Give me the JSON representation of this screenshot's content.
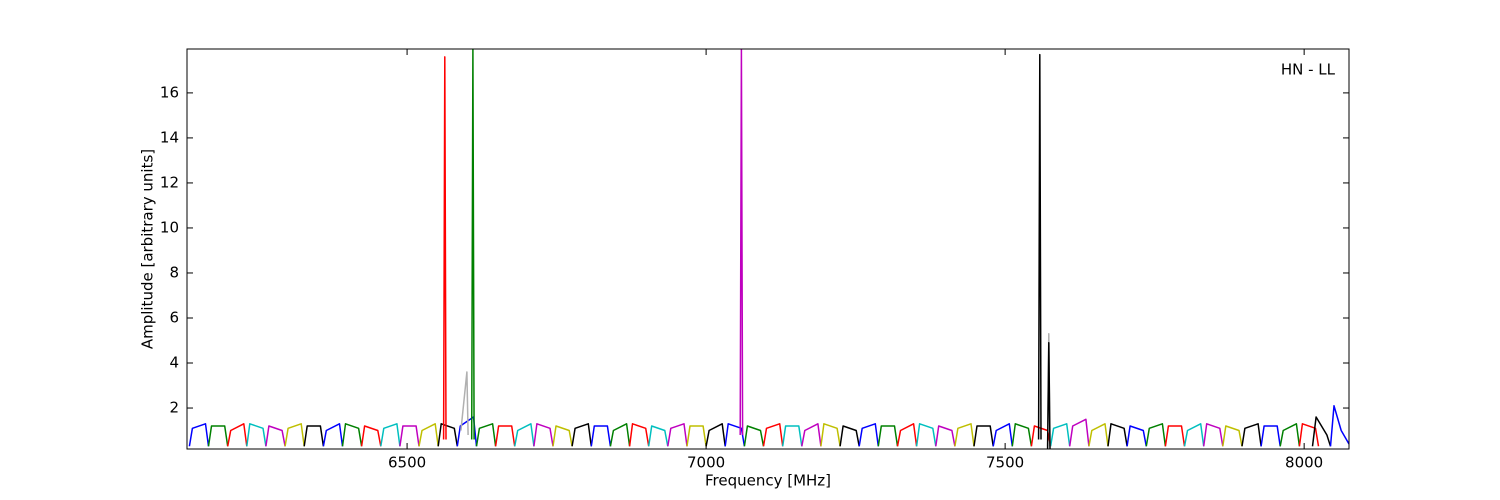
{
  "chart_data": {
    "type": "line",
    "annotation": "HN - LL",
    "xlabel": "Frequency [MHz]",
    "ylabel": "Amplitude [arbitrary units]",
    "xlim": [
      6132,
      8075
    ],
    "ylim": [
      0.18,
      17.95
    ],
    "xticks": [
      6500,
      7000,
      7500,
      8000
    ],
    "yticks": [
      2,
      4,
      6,
      8,
      10,
      12,
      14,
      16
    ],
    "series": [
      {
        "color": "#0000ff",
        "x": [
          6136,
          6141,
          6163,
          6168
        ],
        "values": [
          0.3,
          1.1,
          1.3,
          0.3
        ]
      },
      {
        "color": "#008000",
        "x": [
          6168,
          6173,
          6195,
          6200
        ],
        "values": [
          0.3,
          1.2,
          1.2,
          0.3
        ]
      },
      {
        "color": "#ff0000",
        "x": [
          6200,
          6205,
          6227,
          6232
        ],
        "values": [
          0.3,
          1.0,
          1.3,
          0.3
        ]
      },
      {
        "color": "#00bfbf",
        "x": [
          6232,
          6237,
          6259,
          6264
        ],
        "values": [
          0.3,
          1.3,
          1.1,
          0.3
        ]
      },
      {
        "color": "#bf00bf",
        "x": [
          6264,
          6269,
          6291,
          6296
        ],
        "values": [
          0.3,
          1.2,
          1.0,
          0.3
        ]
      },
      {
        "color": "#bfbf00",
        "x": [
          6296,
          6301,
          6323,
          6328
        ],
        "values": [
          0.3,
          1.1,
          1.3,
          0.3
        ]
      },
      {
        "color": "#000000",
        "x": [
          6328,
          6333,
          6355,
          6360
        ],
        "values": [
          0.3,
          1.2,
          1.2,
          0.3
        ]
      },
      {
        "color": "#0000ff",
        "x": [
          6360,
          6365,
          6387,
          6392
        ],
        "values": [
          0.3,
          1.0,
          1.3,
          0.3
        ]
      },
      {
        "color": "#008000",
        "x": [
          6392,
          6397,
          6419,
          6424
        ],
        "values": [
          0.3,
          1.3,
          1.1,
          0.3
        ]
      },
      {
        "color": "#ff0000",
        "x": [
          6424,
          6429,
          6451,
          6456
        ],
        "values": [
          0.3,
          1.2,
          1.0,
          0.3
        ]
      },
      {
        "color": "#00bfbf",
        "x": [
          6456,
          6461,
          6483,
          6488
        ],
        "values": [
          0.3,
          1.1,
          1.3,
          0.3
        ]
      },
      {
        "color": "#bf00bf",
        "x": [
          6488,
          6493,
          6515,
          6520
        ],
        "values": [
          0.3,
          1.2,
          1.2,
          0.3
        ]
      },
      {
        "color": "#bfbf00",
        "x": [
          6520,
          6525,
          6547,
          6552
        ],
        "values": [
          0.3,
          1.0,
          1.3,
          0.3
        ]
      },
      {
        "color": "#000000",
        "x": [
          6552,
          6557,
          6579,
          6584
        ],
        "values": [
          0.3,
          1.3,
          1.1,
          0.3
        ]
      },
      {
        "color": "#0000ff",
        "x": [
          6584,
          6589,
          6611,
          6616
        ],
        "values": [
          0.3,
          1.2,
          1.6,
          0.3
        ]
      },
      {
        "color": "#008000",
        "x": [
          6616,
          6621,
          6643,
          6648
        ],
        "values": [
          0.3,
          1.1,
          1.3,
          0.3
        ]
      },
      {
        "color": "#ff0000",
        "x": [
          6648,
          6653,
          6675,
          6680
        ],
        "values": [
          0.3,
          1.2,
          1.2,
          0.3
        ]
      },
      {
        "color": "#00bfbf",
        "x": [
          6680,
          6685,
          6707,
          6712
        ],
        "values": [
          0.3,
          1.0,
          1.3,
          0.3
        ]
      },
      {
        "color": "#bf00bf",
        "x": [
          6712,
          6717,
          6739,
          6744
        ],
        "values": [
          0.3,
          1.3,
          1.1,
          0.3
        ]
      },
      {
        "color": "#bfbf00",
        "x": [
          6744,
          6749,
          6771,
          6776
        ],
        "values": [
          0.3,
          1.2,
          1.0,
          0.3
        ]
      },
      {
        "color": "#000000",
        "x": [
          6776,
          6781,
          6803,
          6808
        ],
        "values": [
          0.3,
          1.1,
          1.3,
          0.3
        ]
      },
      {
        "color": "#0000ff",
        "x": [
          6808,
          6813,
          6835,
          6840
        ],
        "values": [
          0.3,
          1.2,
          1.2,
          0.3
        ]
      },
      {
        "color": "#008000",
        "x": [
          6840,
          6845,
          6867,
          6872
        ],
        "values": [
          0.3,
          1.0,
          1.3,
          0.3
        ]
      },
      {
        "color": "#ff0000",
        "x": [
          6872,
          6877,
          6899,
          6904
        ],
        "values": [
          0.3,
          1.3,
          1.1,
          0.3
        ]
      },
      {
        "color": "#00bfbf",
        "x": [
          6904,
          6909,
          6931,
          6936
        ],
        "values": [
          0.3,
          1.2,
          1.0,
          0.3
        ]
      },
      {
        "color": "#bf00bf",
        "x": [
          6936,
          6941,
          6963,
          6968
        ],
        "values": [
          0.3,
          1.1,
          1.3,
          0.3
        ]
      },
      {
        "color": "#bfbf00",
        "x": [
          6968,
          6973,
          6995,
          7000
        ],
        "values": [
          0.3,
          1.2,
          1.2,
          0.3
        ]
      },
      {
        "color": "#000000",
        "x": [
          7000,
          7005,
          7027,
          7032
        ],
        "values": [
          0.3,
          1.0,
          1.3,
          0.3
        ]
      },
      {
        "color": "#0000ff",
        "x": [
          7032,
          7037,
          7059,
          7064
        ],
        "values": [
          0.3,
          1.3,
          1.1,
          0.3
        ]
      },
      {
        "color": "#008000",
        "x": [
          7064,
          7069,
          7091,
          7096
        ],
        "values": [
          0.3,
          1.2,
          1.0,
          0.3
        ]
      },
      {
        "color": "#ff0000",
        "x": [
          7096,
          7101,
          7123,
          7128
        ],
        "values": [
          0.3,
          1.1,
          1.3,
          0.3
        ]
      },
      {
        "color": "#00bfbf",
        "x": [
          7128,
          7133,
          7155,
          7160
        ],
        "values": [
          0.3,
          1.2,
          1.2,
          0.3
        ]
      },
      {
        "color": "#bf00bf",
        "x": [
          7160,
          7165,
          7187,
          7192
        ],
        "values": [
          0.3,
          1.0,
          1.3,
          0.3
        ]
      },
      {
        "color": "#bfbf00",
        "x": [
          7192,
          7197,
          7219,
          7224
        ],
        "values": [
          0.3,
          1.3,
          1.1,
          0.3
        ]
      },
      {
        "color": "#000000",
        "x": [
          7224,
          7229,
          7251,
          7256
        ],
        "values": [
          0.3,
          1.2,
          1.0,
          0.3
        ]
      },
      {
        "color": "#0000ff",
        "x": [
          7256,
          7261,
          7283,
          7288
        ],
        "values": [
          0.3,
          1.1,
          1.3,
          0.3
        ]
      },
      {
        "color": "#008000",
        "x": [
          7288,
          7293,
          7315,
          7320
        ],
        "values": [
          0.3,
          1.2,
          1.2,
          0.3
        ]
      },
      {
        "color": "#ff0000",
        "x": [
          7320,
          7325,
          7347,
          7352
        ],
        "values": [
          0.3,
          1.0,
          1.3,
          0.3
        ]
      },
      {
        "color": "#00bfbf",
        "x": [
          7352,
          7357,
          7379,
          7384
        ],
        "values": [
          0.3,
          1.3,
          1.1,
          0.3
        ]
      },
      {
        "color": "#bf00bf",
        "x": [
          7384,
          7389,
          7411,
          7416
        ],
        "values": [
          0.3,
          1.2,
          1.0,
          0.3
        ]
      },
      {
        "color": "#bfbf00",
        "x": [
          7416,
          7421,
          7443,
          7448
        ],
        "values": [
          0.3,
          1.1,
          1.3,
          0.3
        ]
      },
      {
        "color": "#000000",
        "x": [
          7448,
          7453,
          7475,
          7480
        ],
        "values": [
          0.3,
          1.2,
          1.2,
          0.3
        ]
      },
      {
        "color": "#0000ff",
        "x": [
          7480,
          7485,
          7507,
          7512
        ],
        "values": [
          0.3,
          1.0,
          1.3,
          0.3
        ]
      },
      {
        "color": "#008000",
        "x": [
          7512,
          7517,
          7539,
          7544
        ],
        "values": [
          0.3,
          1.3,
          1.1,
          0.3
        ]
      },
      {
        "color": "#ff0000",
        "x": [
          7544,
          7549,
          7571,
          7576
        ],
        "values": [
          0.3,
          1.2,
          1.0,
          0.3
        ]
      },
      {
        "color": "#00bfbf",
        "x": [
          7576,
          7581,
          7603,
          7608
        ],
        "values": [
          0.3,
          1.1,
          1.3,
          0.3
        ]
      },
      {
        "color": "#bf00bf",
        "x": [
          7608,
          7613,
          7635,
          7640
        ],
        "values": [
          0.3,
          1.2,
          1.5,
          0.3
        ]
      },
      {
        "color": "#bfbf00",
        "x": [
          7640,
          7645,
          7667,
          7672
        ],
        "values": [
          0.3,
          1.0,
          1.3,
          0.3
        ]
      },
      {
        "color": "#000000",
        "x": [
          7672,
          7677,
          7699,
          7704
        ],
        "values": [
          0.3,
          1.3,
          1.1,
          0.3
        ]
      },
      {
        "color": "#0000ff",
        "x": [
          7704,
          7709,
          7731,
          7736
        ],
        "values": [
          0.3,
          1.2,
          1.0,
          0.3
        ]
      },
      {
        "color": "#008000",
        "x": [
          7736,
          7741,
          7763,
          7768
        ],
        "values": [
          0.3,
          1.1,
          1.3,
          0.3
        ]
      },
      {
        "color": "#ff0000",
        "x": [
          7768,
          7773,
          7795,
          7800
        ],
        "values": [
          0.3,
          1.2,
          1.2,
          0.3
        ]
      },
      {
        "color": "#00bfbf",
        "x": [
          7800,
          7805,
          7827,
          7832
        ],
        "values": [
          0.3,
          1.0,
          1.3,
          0.3
        ]
      },
      {
        "color": "#bf00bf",
        "x": [
          7832,
          7837,
          7859,
          7864
        ],
        "values": [
          0.3,
          1.3,
          1.1,
          0.3
        ]
      },
      {
        "color": "#bfbf00",
        "x": [
          7864,
          7869,
          7891,
          7896
        ],
        "values": [
          0.3,
          1.2,
          1.0,
          0.3
        ]
      },
      {
        "color": "#000000",
        "x": [
          7896,
          7901,
          7923,
          7928
        ],
        "values": [
          0.3,
          1.1,
          1.3,
          0.3
        ]
      },
      {
        "color": "#0000ff",
        "x": [
          7928,
          7933,
          7955,
          7960
        ],
        "values": [
          0.3,
          1.2,
          1.2,
          0.3
        ]
      },
      {
        "color": "#008000",
        "x": [
          7960,
          7965,
          7987,
          7992
        ],
        "values": [
          0.3,
          1.0,
          1.3,
          0.3
        ]
      },
      {
        "color": "#ff0000",
        "x": [
          7992,
          7997,
          8019,
          8024
        ],
        "values": [
          0.3,
          1.3,
          1.1,
          0.3
        ]
      },
      {
        "color": "#000000",
        "x": [
          8014,
          8020,
          8038,
          8044
        ],
        "values": [
          0.3,
          1.6,
          0.8,
          0.3
        ]
      },
      {
        "color": "#0000ff",
        "x": [
          8044,
          8050,
          8062,
          8075
        ],
        "values": [
          0.3,
          2.1,
          1.0,
          0.4
        ]
      },
      {
        "color": "#b0b0b0",
        "x": [
          6590,
          6600,
          6602
        ],
        "values": [
          1.0,
          3.6,
          0.8
        ]
      },
      {
        "color": "#b0b0b0",
        "x": [
          7571,
          7573,
          7575
        ],
        "values": [
          0.3,
          5.3,
          0.3
        ]
      },
      {
        "color": "#ff0000",
        "x": [
          6561,
          6563,
          6565
        ],
        "values": [
          0.6,
          17.6,
          0.6
        ]
      },
      {
        "color": "#008000",
        "x": [
          6608,
          6610,
          6612
        ],
        "values": [
          0.6,
          18,
          0.6
        ]
      },
      {
        "color": "#bf00bf",
        "x": [
          7057,
          7059,
          7061
        ],
        "values": [
          0.8,
          18,
          0.8
        ]
      },
      {
        "color": "#000000",
        "x": [
          7556,
          7558,
          7560
        ],
        "values": [
          0.6,
          17.7,
          0.6
        ]
      },
      {
        "color": "#000000",
        "x": [
          7571,
          7573,
          7575
        ],
        "values": [
          0.2,
          4.9,
          0.2
        ]
      }
    ]
  }
}
